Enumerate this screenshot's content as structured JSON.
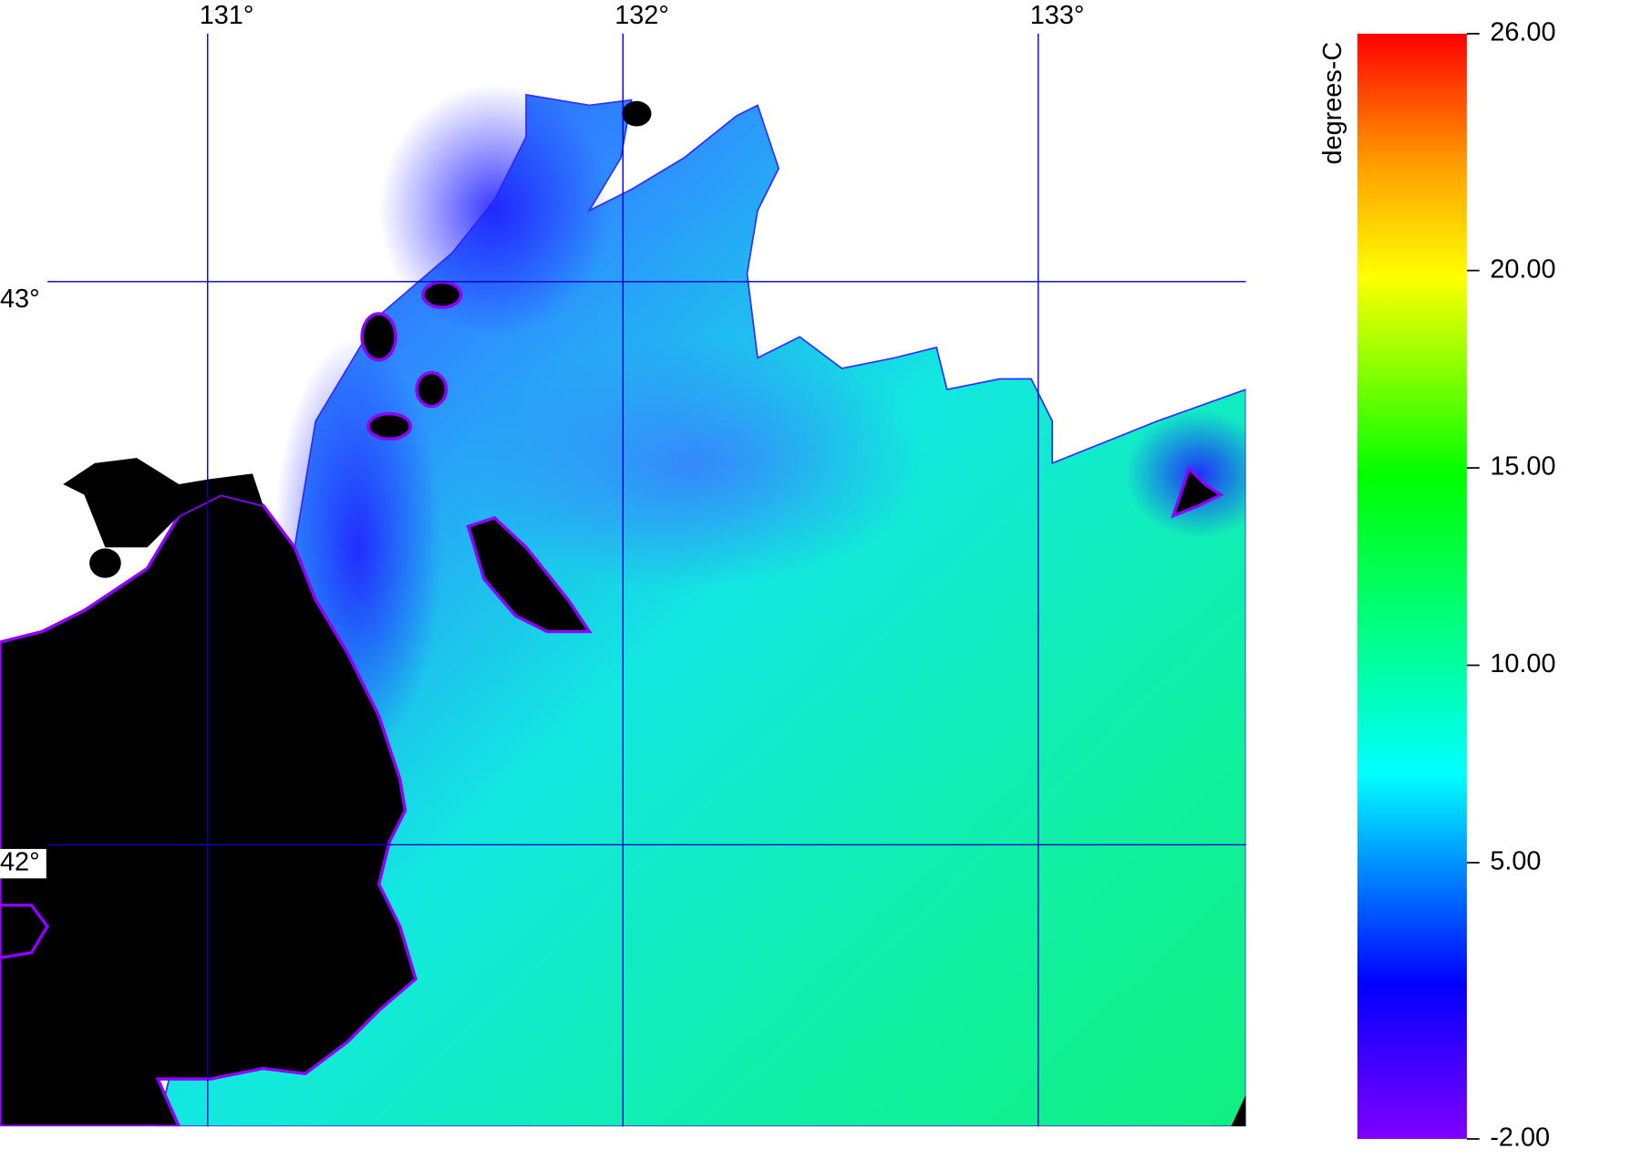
{
  "map": {
    "xlim": [
      130.5,
      133.5
    ],
    "ylim": [
      41.5,
      43.5
    ],
    "xticks": [
      {
        "value": 131,
        "label": "131°"
      },
      {
        "value": 132,
        "label": "132°"
      },
      {
        "value": 133,
        "label": "133°"
      }
    ],
    "yticks": [
      {
        "value": 43,
        "label": "43°"
      },
      {
        "value": 42,
        "label": "42°"
      }
    ]
  },
  "colorbar": {
    "label": "degrees-C",
    "lim": [
      -2,
      26
    ],
    "ticks": [
      {
        "value": 26,
        "label": "26.00"
      },
      {
        "value": 20,
        "label": "20.00"
      },
      {
        "value": 15,
        "label": "15.00"
      },
      {
        "value": 10,
        "label": "10.00"
      },
      {
        "value": 5,
        "label": "5.00"
      },
      {
        "value": -2,
        "label": "-2.00"
      }
    ]
  }
}
